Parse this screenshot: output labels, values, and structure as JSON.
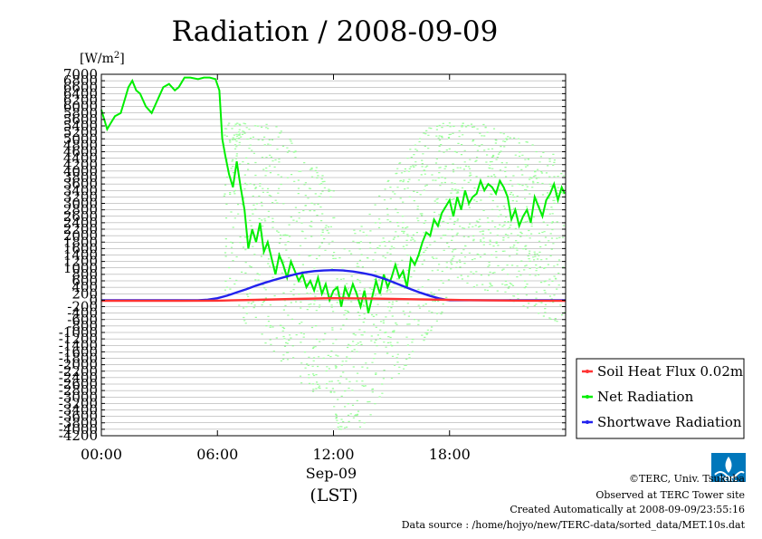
{
  "colors": {
    "soil": "#ff3333",
    "net": "#00ee00",
    "net_scatter": "#99ff99",
    "shortwave": "#2222ee",
    "grid": "#999999",
    "logo": "#0077bb"
  },
  "chart_data": {
    "type": "line",
    "title": "Radiation / 2008-09-09",
    "unit_prefix": "[W/m",
    "unit_sup": "2",
    "unit_suffix": "]",
    "xlabel": "Sep-09",
    "xunit": "(LST)",
    "ylim": [
      -4200,
      7000
    ],
    "xlim": [
      0,
      24
    ],
    "yticks": [
      -4200,
      -4000,
      -3800,
      -3600,
      -3400,
      -3200,
      -3000,
      -2800,
      -2600,
      -2400,
      -2200,
      -2000,
      -1800,
      -1600,
      -1400,
      -1200,
      -1000,
      -800,
      -600,
      -400,
      -200,
      0,
      200,
      400,
      600,
      800,
      1000,
      1200,
      1400,
      1600,
      1800,
      2000,
      2200,
      2400,
      2600,
      2800,
      3000,
      3200,
      3400,
      3600,
      3800,
      4000,
      4200,
      4400,
      4600,
      4800,
      5000,
      5200,
      5400,
      5600,
      5800,
      6000,
      6200,
      6400,
      6600,
      6800,
      7000
    ],
    "ytick_labels": [
      "-4200",
      "-4000",
      "-3800",
      "-3600",
      "-3400",
      "-3200",
      "-3000",
      "-2800",
      "-2600",
      "-2400",
      "-2200",
      "-2000",
      "-1800",
      "-1600",
      "-1400",
      "-1200",
      "-1000",
      "-800",
      "-600",
      "-400",
      "-200",
      "0",
      "200",
      "400",
      "600",
      "800",
      "1000",
      "1200",
      "1400",
      "1600",
      "1800",
      "2000",
      "2200",
      "2400",
      "2600",
      "2800",
      "3000",
      "3200",
      "3400",
      "3600",
      "3800",
      "4000",
      "4200",
      "4400",
      "4600",
      "4800",
      "5000",
      "5200",
      "5400",
      "5600",
      "5800",
      "6000",
      "6200",
      "6400",
      "6600",
      "6800",
      "7000"
    ],
    "xticks": [
      0,
      6,
      12,
      18
    ],
    "xtick_labels": [
      "00:00",
      "06:00",
      "12:00",
      "18:00"
    ],
    "grid": true,
    "legend_position": "right-bottom",
    "series": [
      {
        "name": "Soil Heat Flux 0.02m",
        "color_key": "soil",
        "x": [
          0,
          2,
          4,
          6,
          8,
          10,
          12,
          14,
          16,
          18,
          20,
          22,
          24
        ],
        "y": [
          -20,
          -20,
          -20,
          -15,
          10,
          40,
          60,
          50,
          30,
          10,
          -5,
          -15,
          -20
        ]
      },
      {
        "name": "Net Radiation",
        "color_key": "net",
        "x": [
          0,
          0.15,
          0.3,
          0.5,
          0.7,
          1.0,
          1.2,
          1.4,
          1.6,
          1.8,
          2.0,
          2.3,
          2.6,
          2.9,
          3.2,
          3.5,
          3.8,
          4.0,
          4.3,
          4.6,
          5.0,
          5.3,
          5.6,
          5.9,
          6.1,
          6.25,
          6.4,
          6.6,
          6.8,
          7.0,
          7.2,
          7.4,
          7.6,
          7.8,
          8.0,
          8.2,
          8.4,
          8.6,
          8.8,
          9.0,
          9.2,
          9.4,
          9.6,
          9.8,
          10.0,
          10.2,
          10.4,
          10.6,
          10.8,
          11.0,
          11.2,
          11.4,
          11.6,
          11.8,
          12.0,
          12.2,
          12.4,
          12.6,
          12.8,
          13.0,
          13.2,
          13.4,
          13.6,
          13.8,
          14.0,
          14.2,
          14.4,
          14.6,
          14.8,
          15.0,
          15.2,
          15.4,
          15.6,
          15.8,
          16.0,
          16.2,
          16.4,
          16.6,
          16.8,
          17.0,
          17.2,
          17.4,
          17.6,
          17.8,
          18.0,
          18.2,
          18.4,
          18.6,
          18.8,
          19.0,
          19.2,
          19.4,
          19.6,
          19.8,
          20.0,
          20.2,
          20.4,
          20.6,
          20.8,
          21.0,
          21.2,
          21.4,
          21.6,
          21.8,
          22.0,
          22.2,
          22.4,
          22.6,
          22.8,
          23.0,
          23.2,
          23.4,
          23.6,
          23.8,
          23.95
        ],
        "y": [
          5900,
          5600,
          5300,
          5500,
          5700,
          5800,
          6200,
          6600,
          6800,
          6500,
          6400,
          6000,
          5800,
          6200,
          6600,
          6700,
          6500,
          6600,
          6900,
          6900,
          6850,
          6900,
          6900,
          6850,
          6500,
          5000,
          4500,
          3900,
          3500,
          4300,
          3500,
          2800,
          1600,
          2200,
          1800,
          2400,
          1500,
          1800,
          1300,
          800,
          1400,
          1100,
          700,
          1200,
          900,
          600,
          800,
          400,
          600,
          300,
          700,
          200,
          500,
          0,
          300,
          400,
          -200,
          400,
          100,
          500,
          200,
          -200,
          300,
          -400,
          100,
          600,
          200,
          800,
          400,
          700,
          1100,
          700,
          900,
          400,
          1300,
          1100,
          1400,
          1800,
          2100,
          2000,
          2500,
          2300,
          2700,
          2900,
          3100,
          2600,
          3200,
          2800,
          3400,
          3000,
          3200,
          3300,
          3700,
          3400,
          3600,
          3500,
          3300,
          3700,
          3500,
          3200,
          2500,
          2800,
          2300,
          2600,
          2800,
          2400,
          3200,
          2900,
          2600,
          3100,
          3300,
          3600,
          3100,
          3500,
          3300
        ]
      },
      {
        "name": "Shortwave Radiation",
        "color_key": "shortwave",
        "x": [
          0,
          5.0,
          5.5,
          6.0,
          6.5,
          7.0,
          7.5,
          8.0,
          8.5,
          9.0,
          9.5,
          10.0,
          10.5,
          11.0,
          11.5,
          12.0,
          12.5,
          13.0,
          13.5,
          14.0,
          14.5,
          15.0,
          15.5,
          16.0,
          16.5,
          17.0,
          17.5,
          17.8,
          18.0,
          24
        ],
        "y": [
          0,
          0,
          15,
          60,
          140,
          240,
          340,
          450,
          550,
          640,
          720,
          800,
          860,
          900,
          920,
          930,
          920,
          890,
          840,
          780,
          690,
          580,
          460,
          340,
          230,
          130,
          50,
          15,
          0,
          0
        ]
      }
    ]
  },
  "legend": [
    {
      "label": "Soil Heat Flux 0.02m",
      "color_key": "soil"
    },
    {
      "label": "Net Radiation",
      "color_key": "net"
    },
    {
      "label": "Shortwave Radiation",
      "color_key": "shortwave"
    }
  ],
  "footer": {
    "line1": "©TERC, Univ. Tsukuba",
    "line2": "Observed at TERC Tower site",
    "line3": "Created Automatically at 2008-09-09/23:55:16",
    "line4": "Data source : /home/hojyo/new/TERC-data/sorted_data/MET.10s.dat"
  },
  "logo": {
    "name": "terc-logo",
    "text": "TERC"
  }
}
